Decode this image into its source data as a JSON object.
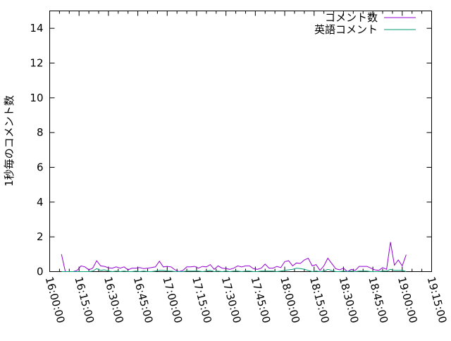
{
  "chart_data": {
    "type": "line",
    "title": "",
    "xlabel": "",
    "ylabel": "1秒毎のコメント数",
    "xlim": [
      "16:00:00",
      "19:15:00"
    ],
    "ylim": [
      0,
      15
    ],
    "x_ticks": [
      "16:00:00",
      "16:15:00",
      "16:30:00",
      "16:45:00",
      "17:00:00",
      "17:15:00",
      "17:30:00",
      "17:45:00",
      "18:00:00",
      "18:15:00",
      "18:30:00",
      "18:45:00",
      "19:00:00",
      "19:15:00"
    ],
    "y_ticks": [
      "0",
      "2",
      "4",
      "6",
      "8",
      "10",
      "12",
      "14"
    ],
    "grid": false,
    "legend_position": "top-right",
    "x": [
      "16:06",
      "16:08",
      "16:10",
      "16:12",
      "16:14",
      "16:16",
      "16:18",
      "16:20",
      "16:22",
      "16:24",
      "16:26",
      "16:28",
      "16:30",
      "16:32",
      "16:34",
      "16:36",
      "16:38",
      "16:40",
      "16:42",
      "16:44",
      "16:46",
      "16:48",
      "16:50",
      "16:52",
      "16:54",
      "16:56",
      "16:58",
      "17:00",
      "17:02",
      "17:04",
      "17:06",
      "17:08",
      "17:10",
      "17:12",
      "17:14",
      "17:16",
      "17:18",
      "17:20",
      "17:22",
      "17:24",
      "17:26",
      "17:28",
      "17:30",
      "17:32",
      "17:34",
      "17:36",
      "17:38",
      "17:40",
      "17:42",
      "17:44",
      "17:46",
      "17:48",
      "17:50",
      "17:52",
      "17:54",
      "17:56",
      "17:58",
      "18:00",
      "18:02",
      "18:04",
      "18:06",
      "18:08",
      "18:10",
      "18:12",
      "18:14",
      "18:16",
      "18:18",
      "18:20",
      "18:22",
      "18:24",
      "18:26",
      "18:28",
      "18:30",
      "18:32",
      "18:34",
      "18:36",
      "18:38",
      "18:40",
      "18:42",
      "18:44",
      "18:46",
      "18:48",
      "18:50",
      "18:52",
      "18:54",
      "18:56",
      "18:58",
      "19:00",
      "19:02"
    ],
    "series": [
      {
        "name": "コメント数",
        "color": "#9400d3",
        "values": [
          1.0,
          0,
          0,
          0,
          0.07,
          0.33,
          0.27,
          0.1,
          0.2,
          0.63,
          0.33,
          0.3,
          0.22,
          0.2,
          0.27,
          0.2,
          0.27,
          0.1,
          0.2,
          0.2,
          0.23,
          0.17,
          0.2,
          0.23,
          0.27,
          0.6,
          0.27,
          0.3,
          0.27,
          0.1,
          0,
          0.07,
          0.27,
          0.27,
          0.3,
          0.2,
          0.3,
          0.27,
          0.4,
          0.13,
          0.33,
          0.2,
          0.17,
          0.13,
          0.2,
          0.33,
          0.27,
          0.33,
          0.33,
          0.17,
          0.13,
          0.2,
          0.43,
          0.2,
          0.2,
          0.3,
          0.23,
          0.57,
          0.63,
          0.33,
          0.5,
          0.47,
          0.67,
          0.77,
          0.33,
          0.4,
          0.07,
          0.33,
          0.77,
          0.47,
          0.17,
          0.1,
          0.2,
          0,
          0.13,
          0.07,
          0.3,
          0.3,
          0.3,
          0.2,
          0.1,
          0.07,
          0.23,
          0.13,
          1.7,
          0.37,
          0.67,
          0.33,
          0.97
        ]
      },
      {
        "name": "英語コメント",
        "color": "#009e73",
        "values": [
          0,
          0,
          0,
          0,
          0,
          0,
          0,
          0,
          0.03,
          0.17,
          0.07,
          0.1,
          0.03,
          0,
          0.03,
          0,
          0.03,
          0,
          0,
          0.03,
          0,
          0.03,
          0,
          0,
          0.03,
          0.07,
          0.07,
          0.03,
          0.03,
          0,
          0,
          0,
          0.03,
          0.03,
          0.03,
          0.03,
          0,
          0.03,
          0.07,
          0,
          0.03,
          0,
          0.03,
          0,
          0.03,
          0.03,
          0,
          0.03,
          0.03,
          0,
          0,
          0.03,
          0.03,
          0.03,
          0.03,
          0,
          0.03,
          0.07,
          0.1,
          0.13,
          0.2,
          0.17,
          0.13,
          0.07,
          0,
          0.03,
          0,
          0.03,
          0.13,
          0.07,
          0,
          0,
          0.03,
          0,
          0.03,
          0,
          0.03,
          0.03,
          0.03,
          0,
          0,
          0,
          0.03,
          0.03,
          0.13,
          0.07,
          0.07,
          0.07,
          0
        ]
      }
    ]
  }
}
